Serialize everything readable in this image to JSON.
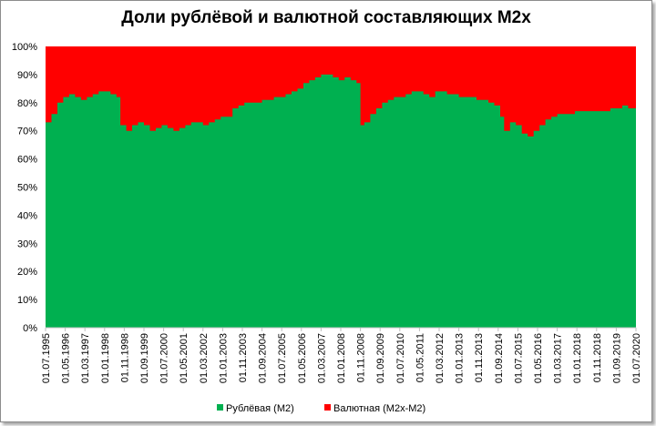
{
  "chart_data": {
    "type": "area",
    "title": "Доли рублёвой и валютной составляющих M2x",
    "stacked": "percent",
    "y_ticks": [
      "0%",
      "10%",
      "20%",
      "30%",
      "40%",
      "50%",
      "60%",
      "70%",
      "80%",
      "90%",
      "100%"
    ],
    "ylim": [
      0,
      100
    ],
    "x_tick_labels": [
      "01.07.1995",
      "01.05.1996",
      "01.03.1997",
      "01.01.1998",
      "01.11.1998",
      "01.09.1999",
      "01.07.2000",
      "01.05.2001",
      "01.03.2002",
      "01.01.2003",
      "01.11.2003",
      "01.09.2004",
      "01.07.2005",
      "01.05.2006",
      "01.03.2007",
      "01.01.2008",
      "01.11.2008",
      "01.09.2009",
      "01.07.2010",
      "01.05.2011",
      "01.03.2012",
      "01.01.2013",
      "01.11.2013",
      "01.09.2014",
      "01.07.2015",
      "01.05.2016",
      "01.03.2017",
      "01.01.2018",
      "01.11.2018",
      "01.09.2019",
      "01.07.2020"
    ],
    "x": [
      "1995-07",
      "1995-10",
      "1996-01",
      "1996-04",
      "1996-07",
      "1996-10",
      "1997-01",
      "1997-04",
      "1997-07",
      "1997-10",
      "1998-01",
      "1998-04",
      "1998-07",
      "1998-09",
      "1998-12",
      "1999-03",
      "1999-06",
      "1999-09",
      "1999-12",
      "2000-03",
      "2000-06",
      "2000-09",
      "2000-12",
      "2001-03",
      "2001-06",
      "2001-09",
      "2001-12",
      "2002-03",
      "2002-06",
      "2002-09",
      "2002-12",
      "2003-03",
      "2003-06",
      "2003-09",
      "2003-12",
      "2004-03",
      "2004-06",
      "2004-09",
      "2004-12",
      "2005-03",
      "2005-06",
      "2005-09",
      "2005-12",
      "2006-03",
      "2006-06",
      "2006-09",
      "2006-12",
      "2007-03",
      "2007-06",
      "2007-09",
      "2007-12",
      "2008-03",
      "2008-06",
      "2008-09",
      "2008-11",
      "2009-01",
      "2009-04",
      "2009-07",
      "2009-10",
      "2010-01",
      "2010-04",
      "2010-07",
      "2010-10",
      "2011-01",
      "2011-04",
      "2011-07",
      "2011-10",
      "2012-01",
      "2012-04",
      "2012-07",
      "2012-10",
      "2013-01",
      "2013-04",
      "2013-07",
      "2013-10",
      "2014-01",
      "2014-04",
      "2014-07",
      "2014-10",
      "2014-12",
      "2015-03",
      "2015-06",
      "2015-09",
      "2015-12",
      "2016-03",
      "2016-06",
      "2016-09",
      "2016-12",
      "2017-03",
      "2017-06",
      "2017-09",
      "2017-12",
      "2018-03",
      "2018-06",
      "2018-09",
      "2018-12",
      "2019-03",
      "2019-06",
      "2019-09",
      "2019-12",
      "2020-03",
      "2020-07"
    ],
    "series": [
      {
        "name": "Рублёвая (M2)",
        "color": "#00b050",
        "values": [
          73,
          76,
          80,
          82,
          83,
          82,
          81,
          82,
          83,
          84,
          84,
          83,
          82,
          72,
          70,
          72,
          73,
          72,
          70,
          71,
          72,
          71,
          70,
          71,
          72,
          73,
          73,
          72,
          73,
          74,
          75,
          75,
          78,
          79,
          80,
          80,
          80,
          81,
          81,
          82,
          82,
          83,
          84,
          85,
          87,
          88,
          89,
          90,
          90,
          89,
          88,
          89,
          88,
          87,
          72,
          73,
          76,
          78,
          80,
          81,
          82,
          82,
          83,
          84,
          84,
          83,
          82,
          84,
          84,
          83,
          83,
          82,
          82,
          82,
          81,
          81,
          80,
          79,
          75,
          70,
          73,
          72,
          69,
          68,
          70,
          72,
          74,
          75,
          76,
          76,
          76,
          77,
          77,
          77,
          77,
          77,
          77,
          78,
          78,
          79,
          78,
          79
        ]
      },
      {
        "name": "Валютная (M2x-M2)",
        "color": "#ff0000"
      }
    ],
    "legend_position": "bottom"
  }
}
